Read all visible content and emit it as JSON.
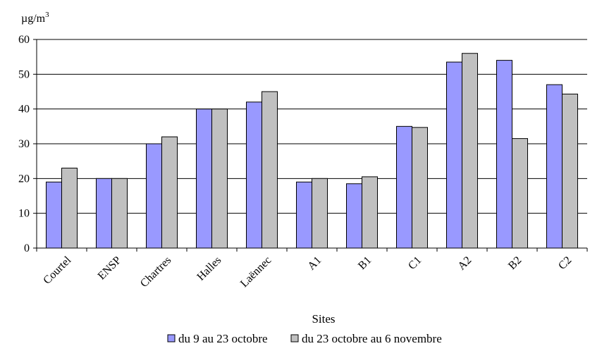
{
  "chart_data": {
    "type": "bar",
    "title": "",
    "ylabel": "µg/m",
    "ylabel_superscript": "3",
    "xlabel": "Sites",
    "ylim": [
      0,
      60
    ],
    "yticks": [
      0,
      10,
      20,
      30,
      40,
      50,
      60
    ],
    "grid": true,
    "legend_placement": "bottom-center",
    "categories": [
      "Courtel",
      "ENSP",
      "Chartres",
      "Halles",
      "Laënnec",
      "A1",
      "B1",
      "C1",
      "A2",
      "B2",
      "C2"
    ],
    "series": [
      {
        "name": "du 9 au 23 octobre",
        "color": "#9999ff",
        "values": [
          19,
          20,
          30,
          40,
          42,
          19,
          18.5,
          35,
          53.5,
          54,
          47
        ]
      },
      {
        "name": "du 23 octobre au 6 novembre",
        "color": "#c0c0c0",
        "values": [
          23,
          20,
          32,
          40,
          45,
          20,
          20.5,
          34.7,
          56,
          31.5,
          44.3
        ]
      }
    ]
  }
}
